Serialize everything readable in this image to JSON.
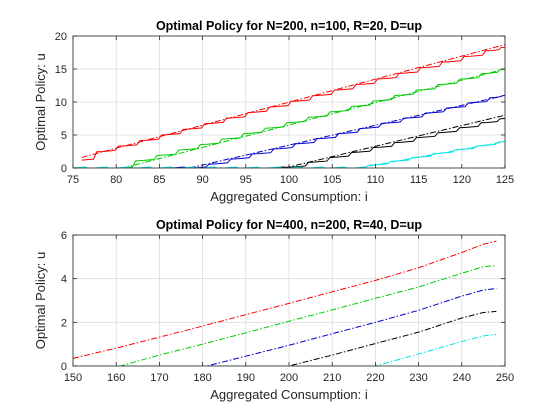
{
  "chart_data": [
    {
      "type": "line",
      "title": "Optimal Policy for N=200, n=100, R=20, D=up",
      "xlabel": "Aggregated Consumption: i",
      "ylabel": "Optimal Policy: u",
      "xlim": [
        75,
        125
      ],
      "ylim": [
        0,
        20
      ],
      "xticks": [
        "75",
        "80",
        "85",
        "90",
        "95",
        "100",
        "105",
        "110",
        "115",
        "120",
        "125"
      ],
      "yticks": [
        "0",
        "5",
        "10",
        "15",
        "20"
      ],
      "grid": true,
      "series": [
        {
          "color": "#ff0000",
          "style": "solid",
          "stepped": true,
          "x": [
            76,
            76.5,
            77,
            125
          ],
          "y": [
            1.2,
            1.2,
            2,
            18.3
          ]
        },
        {
          "color": "#ff0000",
          "style": "dashdot",
          "x": [
            76,
            125
          ],
          "y": [
            1.6,
            18.7
          ]
        },
        {
          "color": "#00cc00",
          "style": "solid",
          "stepped": true,
          "x": [
            80.5,
            82,
            125
          ],
          "y": [
            0,
            0.8,
            15
          ]
        },
        {
          "color": "#00cc00",
          "style": "dashdot",
          "x": [
            80.8,
            125
          ],
          "y": [
            0,
            15
          ]
        },
        {
          "color": "#0000cc",
          "style": "solid",
          "stepped": true,
          "x": [
            86.5,
            89.5,
            125
          ],
          "y": [
            0,
            0,
            11
          ]
        },
        {
          "color": "#0000cc",
          "style": "dashdot",
          "x": [
            88.5,
            125
          ],
          "y": [
            0,
            11
          ]
        },
        {
          "color": "#000000",
          "style": "solid",
          "stepped": true,
          "x": [
            98,
            100,
            125
          ],
          "y": [
            0,
            0,
            7.5
          ]
        },
        {
          "color": "#000000",
          "style": "dashdot",
          "x": [
            99.5,
            125
          ],
          "y": [
            0,
            8
          ]
        },
        {
          "color": "#00e5e5",
          "style": "solid",
          "stepped": true,
          "x": [
            75,
            108,
            125
          ],
          "y": [
            0,
            0,
            4
          ]
        },
        {
          "color": "#00e5e5",
          "style": "dashdot",
          "x": [
            108,
            125
          ],
          "y": [
            0,
            4
          ]
        }
      ]
    },
    {
      "type": "line",
      "title": "Optimal Policy for N=400, n=200, R=40, D=up",
      "xlabel": "Aggregated Consumption: i",
      "ylabel": "Optimal Policy: u",
      "xlim": [
        150,
        250
      ],
      "ylim": [
        0,
        6
      ],
      "xticks": [
        "150",
        "160",
        "170",
        "180",
        "190",
        "200",
        "210",
        "220",
        "230",
        "240",
        "250"
      ],
      "yticks": [
        "0",
        "2",
        "4",
        "6"
      ],
      "grid": true,
      "series": [
        {
          "color": "#ff0000",
          "style": "dashdot",
          "x": [
            150,
            160,
            170,
            180,
            190,
            200,
            210,
            220,
            230,
            240,
            245,
            248
          ],
          "y": [
            0.35,
            0.82,
            1.32,
            1.83,
            2.35,
            2.87,
            3.4,
            3.92,
            4.5,
            5.2,
            5.58,
            5.72
          ]
        },
        {
          "color": "#00cc00",
          "style": "dashdot",
          "x": [
            150,
            161,
            170,
            180,
            190,
            200,
            210,
            220,
            230,
            240,
            245,
            248
          ],
          "y": [
            0,
            0,
            0.5,
            1.0,
            1.52,
            2.05,
            2.57,
            3.1,
            3.62,
            4.25,
            4.55,
            4.6
          ]
        },
        {
          "color": "#0000cc",
          "style": "dashdot",
          "x": [
            150,
            181,
            190,
            200,
            210,
            220,
            230,
            240,
            245,
            248
          ],
          "y": [
            0,
            0,
            0.45,
            0.95,
            1.48,
            2.0,
            2.55,
            3.2,
            3.48,
            3.55
          ]
        },
        {
          "color": "#000000",
          "style": "dashdot",
          "x": [
            150,
            200,
            210,
            220,
            230,
            240,
            245,
            248
          ],
          "y": [
            0,
            0,
            0.5,
            1.03,
            1.55,
            2.2,
            2.45,
            2.5
          ]
        },
        {
          "color": "#00e5e5",
          "style": "dashdot",
          "x": [
            150,
            220,
            230,
            240,
            245,
            248
          ],
          "y": [
            0,
            0,
            0.55,
            1.12,
            1.38,
            1.45
          ]
        }
      ]
    }
  ]
}
